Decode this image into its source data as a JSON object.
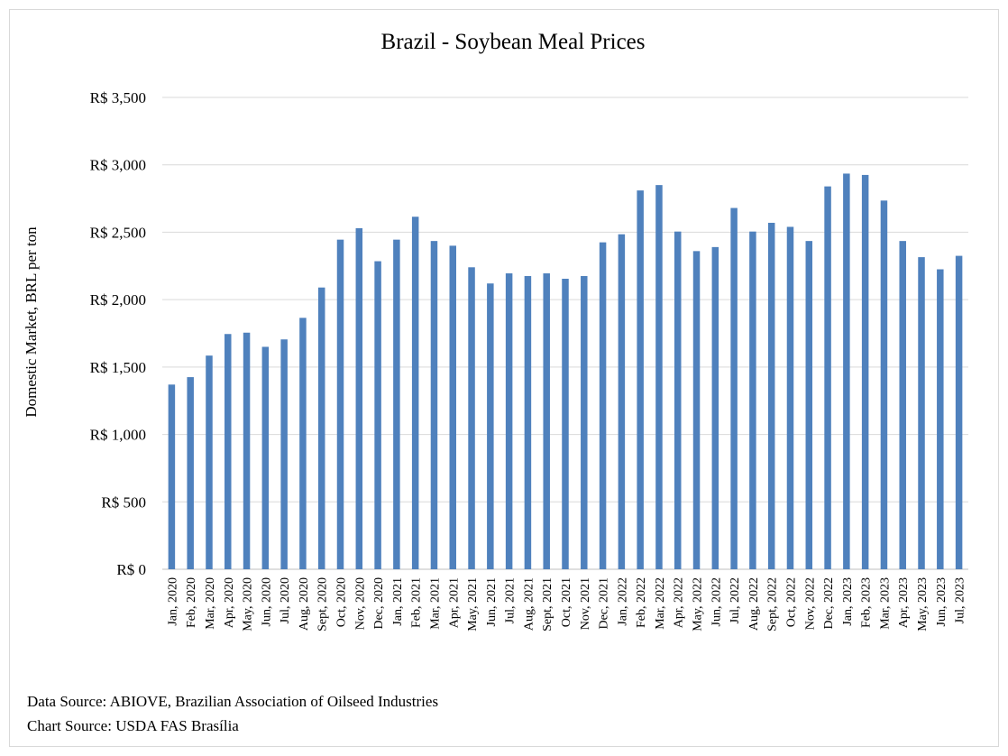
{
  "chart_data": {
    "type": "bar",
    "title": "Brazil - Soybean Meal Prices",
    "xlabel": "",
    "ylabel": "Domestic Market, BRL per ton",
    "ylim": [
      0,
      3500
    ],
    "yticks": [
      0,
      500,
      1000,
      1500,
      2000,
      2500,
      3000,
      3500
    ],
    "ytick_labels": [
      "R$ 0",
      "R$ 500",
      "R$ 1,000",
      "R$ 1,500",
      "R$ 2,000",
      "R$ 2,500",
      "R$ 3,000",
      "R$ 3,500"
    ],
    "grid": true,
    "bar_color": "#4f81bd",
    "categories": [
      "Jan, 2020",
      "Feb, 2020",
      "Mar, 2020",
      "Apr, 2020",
      "May, 2020",
      "Jun, 2020",
      "Jul, 2020",
      "Aug, 2020",
      "Sept, 2020",
      "Oct, 2020",
      "Nov, 2020",
      "Dec, 2020",
      "Jan, 2021",
      "Feb, 2021",
      "Mar, 2021",
      "Apr, 2021",
      "May, 2021",
      "Jun, 2021",
      "Jul, 2021",
      "Aug, 2021",
      "Sept, 2021",
      "Oct, 2021",
      "Nov, 2021",
      "Dec, 2021",
      "Jan, 2022",
      "Feb, 2022",
      "Mar, 2022",
      "Apr, 2022",
      "May, 2022",
      "Jun, 2022",
      "Jul, 2022",
      "Aug, 2022",
      "Sept, 2022",
      "Oct, 2022",
      "Nov, 2022",
      "Dec, 2022",
      "Jan, 2023",
      "Feb, 2023",
      "Mar, 2023",
      "Apr, 2023",
      "May, 2023",
      "Jun, 2023",
      "Jul, 2023"
    ],
    "values": [
      1370,
      1425,
      1585,
      1745,
      1755,
      1650,
      1705,
      1865,
      2090,
      2445,
      2530,
      2285,
      2445,
      2615,
      2435,
      2400,
      2240,
      2120,
      2195,
      2175,
      2195,
      2155,
      2175,
      2425,
      2485,
      2810,
      2850,
      2505,
      2360,
      2390,
      2680,
      2505,
      2570,
      2540,
      2435,
      2840,
      2935,
      2925,
      2735,
      2435,
      2315,
      2225,
      2325
    ]
  },
  "footer": {
    "data_source": "Data Source: ABIOVE, Brazilian Association of Oilseed Industries",
    "chart_source": "Chart Source: USDA FAS Brasília"
  }
}
